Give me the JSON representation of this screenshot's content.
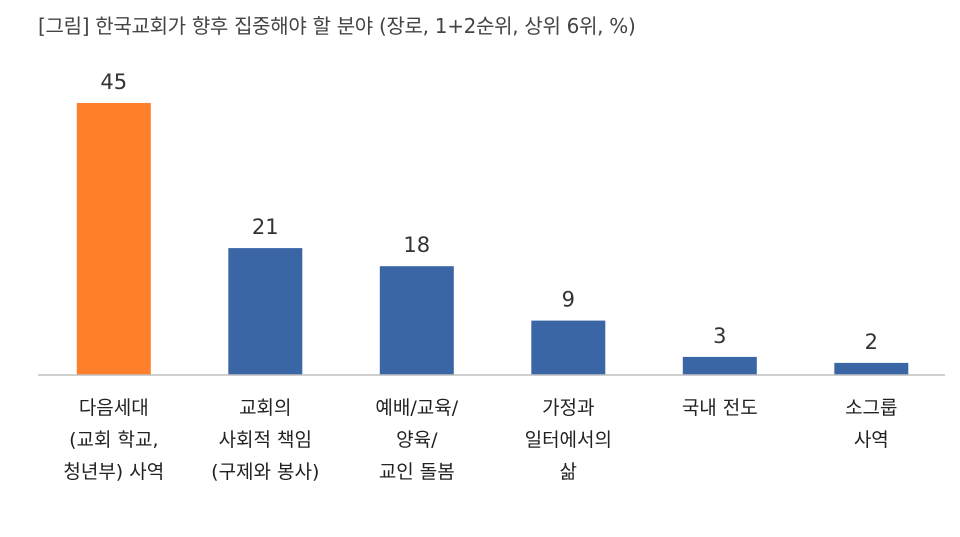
{
  "title": "[그림] 한국교회가 향후 집중해야 할 분야 (장로, 1+2순위, 상위 6위, %)",
  "chart_data": {
    "type": "bar",
    "title": "[그림] 한국교회가 향후 집중해야 할 분야 (장로, 1+2순위, 상위 6위, %)",
    "categories": [
      [
        "다음세대",
        "(교회 학교,",
        "청년부) 사역"
      ],
      [
        "교회의",
        "사회적 책임",
        "(구제와 봉사)"
      ],
      [
        "예배/교육/",
        "양육/",
        "교인 돌봄"
      ],
      [
        "가정과",
        "일터에서의",
        "삶"
      ],
      [
        "국내 전도"
      ],
      [
        "소그룹",
        "사역"
      ]
    ],
    "values": [
      45,
      21,
      18,
      9,
      3,
      2
    ],
    "bar_colors": [
      "#FF7F2A",
      "#3A66A6",
      "#3A66A6",
      "#3A66A6",
      "#3A66A6",
      "#3A66A6"
    ],
    "ylim": [
      0,
      45
    ],
    "grid": false,
    "legend": "none",
    "xlabel": "",
    "ylabel": ""
  }
}
